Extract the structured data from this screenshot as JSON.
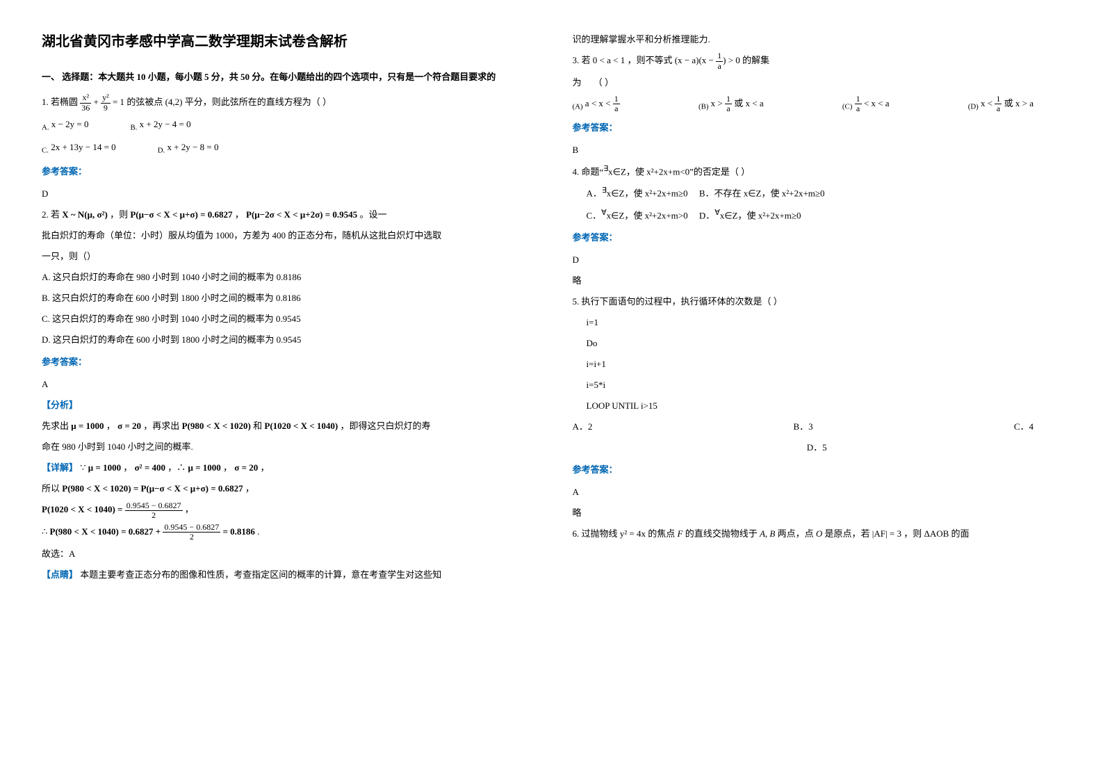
{
  "title": "湖北省黄冈市孝感中学高二数学理期末试卷含解析",
  "section1": "一、 选择题：本大题共 10 小题，每小题 5 分，共 50 分。在每小题给出的四个选项中，只有是一个符合题目要求的",
  "q1": {
    "stem_prefix": "1. 若椭圆",
    "stem_mid": "的弦被点",
    "point": "(4,2)",
    "stem_suffix": "平分，则此弦所在的直线方程为（      ）",
    "optA_label": "A.",
    "optA": "x − 2y = 0",
    "optB_label": "B.",
    "optB": "x + 2y − 4 = 0",
    "optC_label": "C.",
    "optC": "2x + 13y − 14 = 0",
    "optD_label": "D.",
    "optD": "x + 2y − 8 = 0"
  },
  "ans_label": "参考答案：",
  "q1_ans": "D",
  "q2": {
    "prefix": "2. 若",
    "dist": "X ~ N(μ, σ²)",
    "mid1": "，则",
    "p1": "P(μ−σ < X < μ+σ) = 0.6827",
    "comma": "，",
    "p2": "P(μ−2σ < X < μ+2σ) = 0.9545",
    "suffix": "。设一",
    "line2": "批白炽灯的寿命（单位：小时）服从均值为 1000，方差为 400 的正态分布，随机从这批白炽灯中选取",
    "line3": "一只，则（）",
    "a": "A. 这只白炽灯的寿命在 980 小时到 1040 小时之间的概率为 0.8186",
    "b": "B. 这只白炽灯的寿命在 600 小时到 1800 小时之间的概率为 0.8186",
    "c": "C. 这只白炽灯的寿命在 980 小时到 1040 小时之间的概率为 0.9545",
    "d": "D. 这只白炽灯的寿命在 600 小时到 1800 小时之间的概率为 0.9545"
  },
  "q2_ans": "A",
  "analysis_label": "【分析】",
  "q2_expl1a": "先求出",
  "q2_expl1b": "μ = 1000",
  "q2_expl1c": "，",
  "q2_expl1d": "σ = 20",
  "q2_expl1e": "，再求出",
  "q2_expl1f": "P(980 < X < 1020)",
  "q2_expl1g": "和",
  "q2_expl1h": "P(1020 < X < 1040)",
  "q2_expl1i": "，即得这只白炽灯的寿",
  "q2_expl2": "命在 980 小时到 1040 小时之间的概率.",
  "detail_label": "【详解】",
  "q2_d1": "∵",
  "q2_d2": "μ = 1000",
  "q2_d3": "，",
  "q2_d4": "σ² = 400",
  "q2_d5": "，∴",
  "q2_d6": "μ = 1000",
  "q2_d7": "，",
  "q2_d8": "σ = 20",
  "q2_d9": "，",
  "q2_e1": "所以",
  "q2_e2": "P(980 < X < 1020) = P(μ−σ < X < μ+σ) = 0.6827",
  "q2_e3": "，",
  "q2_f1": "P(1020 < X < 1040) =",
  "q2_f2n": "0.9545 − 0.6827",
  "q2_f2d": "2",
  "q2_f3": "，",
  "q2_g1": "∴",
  "q2_g2": "P(980 < X < 1040)",
  "q2_g3": "= 0.6827 +",
  "q2_g3n": "0.9545 − 0.6827",
  "q2_g3d": "2",
  "q2_g4": "= 0.8186",
  "q2_g5": ".",
  "q2_pick": "故选：A",
  "note_label": "【点睛】",
  "q2_note": "本题主要考查正态分布的图像和性质，考查指定区间的概率的计算，意在考查学生对这些知",
  "q2_note2": "识的理解掌握水平和分析推理能力.",
  "q3": {
    "prefix": "3. 若",
    "cond": "0 < a < 1",
    "mid": "，则不等式",
    "ineq": "(x − a)(x − ",
    "ineq2": ") > 0",
    "suffix": "的解集",
    "line2a": "为",
    "line2b": "（            ）",
    "aL": "(A)",
    "a1": "a < x < ",
    "bL": "(B)",
    "b1": "x > ",
    "b2": " 或 x < a",
    "cL": "(C)",
    "c1": " < x < a",
    "dL": "(D)",
    "d1": "x < ",
    "d2": " 或 x > a",
    "1a": "1",
    "aa": "a"
  },
  "q3_ans": "B",
  "q4": {
    "stem_a": "4. 命题“",
    "stem_b": "∃",
    "stem_c": "x∈Z，使 x²+2x+m<0”的否定是（         ）",
    "aL": "A．",
    "a1": "∃",
    "a2": "x∈Z，使 x²+2x+m≥0",
    "bL": "B．不存在 x∈Z，使 x²+2x+m≥0",
    "cL": "C．",
    "c1": "∀",
    "c2": "x∈Z，使 x²+2x+m>0",
    "dL": "D．",
    "d1": "∀",
    "d2": "x∈Z，使 x²+2x+m≥0"
  },
  "q4_ans": "D",
  "q4_brief": "略",
  "q5": {
    "stem": "5. 执行下面语句的过程中，执行循环体的次数是（        ）",
    "l1": "i=1",
    "l2": "Do",
    "l3": "i=i+1",
    "l4": "i=5*i",
    "l5": "LOOP UNTIL i>15",
    "aL": "A．2",
    "bL": "B．3",
    "cL": "C．4",
    "dL": "D．5"
  },
  "q5_ans": "A",
  "q5_brief": "略",
  "q6": {
    "prefix": "6. 过抛物线",
    "eq": "y² = 4x",
    "m1": " 的焦点 ",
    "F": "F",
    "m2": " 的直线交抛物线于 ",
    "AB": "A, B",
    "m3": " 两点，点 ",
    "O": "O",
    "m4": " 是原点，若 ",
    "af": "|AF| = 3",
    "m5": "，则",
    "aob": "ΔAOB",
    "m6": " 的面"
  }
}
